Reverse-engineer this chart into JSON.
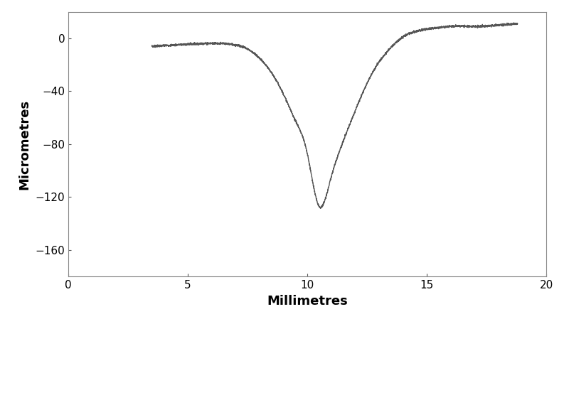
{
  "title": "",
  "xlabel": "Millimetres",
  "ylabel": "Micrometres",
  "xlim": [
    0,
    20
  ],
  "ylim": [
    -180,
    20
  ],
  "yticks": [
    0,
    -40,
    -80,
    -120,
    -160
  ],
  "xticks": [
    0,
    5,
    10,
    15,
    20
  ],
  "line_color": "#555555",
  "line_width": 1.0,
  "background_color": "#ffffff",
  "control_points_x": [
    3.5,
    4.5,
    5.5,
    6.5,
    7.0,
    7.5,
    8.0,
    8.5,
    9.0,
    9.5,
    10.0,
    10.5,
    11.0,
    11.5,
    12.0,
    12.5,
    13.0,
    13.5,
    14.0,
    14.5,
    15.0,
    15.5,
    16.0,
    17.0,
    18.0,
    18.8
  ],
  "control_points_y": [
    -6,
    -5,
    -4,
    -4,
    -5,
    -8,
    -15,
    -26,
    -42,
    -62,
    -87,
    -127,
    -105,
    -78,
    -55,
    -34,
    -18,
    -7,
    1,
    5,
    7,
    8,
    9,
    9,
    10,
    11
  ],
  "noise_amplitude": 0.4,
  "xlabel_fontsize": 13,
  "ylabel_fontsize": 13,
  "tick_fontsize": 11
}
